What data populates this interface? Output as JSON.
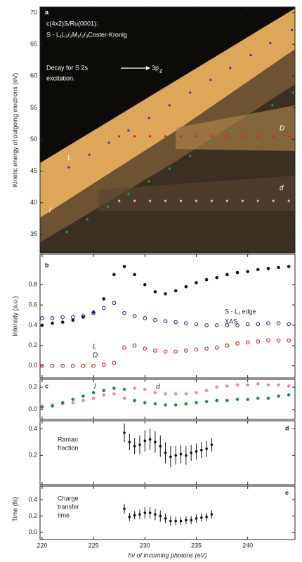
{
  "chart_data": [
    {
      "type": "scatter",
      "label": "a",
      "ylabel": "Kinetic energy of outgoing electrons (eV)",
      "ylim": [
        32.1,
        70.9
      ],
      "yticks": [
        35,
        40,
        45,
        50,
        55,
        60,
        65,
        70
      ],
      "annotations": [
        "c(4x2)S/Ru(0001):",
        "S - L₁L₂/₃M₁/₂/₃Coster-Kronig",
        "Decay for S 2s",
        "3p",
        "z",
        "excitation.",
        "L",
        "D",
        "l",
        "d"
      ],
      "series": [
        {
          "color": "#2b3fd0",
          "x": [
            222.6,
            224.6,
            226.5,
            228.4,
            230.4,
            232.4,
            234.4,
            236.4,
            238.3,
            240.3,
            242.2,
            244.3
          ],
          "values": [
            45.6,
            47.6,
            49.5,
            51.4,
            53.4,
            55.4,
            57.4,
            59.4,
            61.3,
            63.3,
            65.2,
            67.3
          ]
        },
        {
          "color": "#e02020",
          "x": [
            227.5,
            229,
            230.5,
            232,
            233.5,
            235,
            236.5,
            238,
            239.5,
            241,
            242.5,
            244
          ],
          "values": [
            50.5,
            50.5,
            50.5,
            50.5,
            50.5,
            50.5,
            50.5,
            50.5,
            50.5,
            50.5,
            50.5,
            50.5
          ]
        },
        {
          "color": "#20a040",
          "x": [
            222.4,
            224.4,
            226.4,
            228.4,
            230.4,
            232.4,
            234.4,
            236.4,
            238.4,
            240.4,
            242.4,
            244.4
          ],
          "values": [
            35.4,
            37.4,
            39.4,
            41.4,
            43.4,
            45.4,
            47.4,
            49.4,
            51.4,
            53.4,
            55.4,
            57.4
          ]
        },
        {
          "color": "#f0a0c8",
          "x": [
            227.5,
            229,
            230.5,
            232,
            233.5,
            235,
            236.5,
            238,
            239.5,
            241,
            242.5,
            244
          ],
          "values": [
            40.3,
            40.3,
            40.3,
            40.3,
            40.3,
            40.3,
            40.3,
            40.3,
            40.3,
            40.3,
            40.3,
            40.3
          ]
        }
      ]
    },
    {
      "type": "scatter",
      "label": "b",
      "ylabel": "Intensity (a.u.)",
      "ylim": [
        -0.12,
        1.1
      ],
      "yticks": [
        {
          "value": 0,
          "label": "0.0"
        },
        0.2,
        0.4,
        0.6,
        0.8
      ],
      "annotations": [
        "S - L₁ edge",
        "XAS",
        "L",
        "D"
      ],
      "series": [
        {
          "color": "#111111",
          "filled": true,
          "x": [
            220,
            221,
            222,
            223,
            224,
            225,
            226,
            227,
            228,
            229,
            230,
            231,
            232,
            233,
            234,
            235,
            236,
            237,
            238,
            239,
            240,
            241,
            242,
            243,
            244
          ],
          "values": [
            0.4,
            0.42,
            0.43,
            0.45,
            0.48,
            0.53,
            0.66,
            0.9,
            0.98,
            0.9,
            0.8,
            0.73,
            0.71,
            0.74,
            0.78,
            0.82,
            0.85,
            0.87,
            0.9,
            0.92,
            0.93,
            0.95,
            0.96,
            0.97,
            0.98
          ]
        },
        {
          "color": "#2a2a9a",
          "filled": false,
          "x": [
            220,
            221,
            222,
            223,
            224,
            225,
            226,
            227,
            228,
            229,
            230,
            231,
            232,
            233,
            234,
            235,
            236,
            237,
            238,
            239,
            240,
            241,
            242,
            243,
            244
          ],
          "values": [
            0.47,
            0.47,
            0.48,
            0.48,
            0.49,
            0.52,
            0.57,
            0.62,
            0.52,
            0.49,
            0.47,
            0.45,
            0.44,
            0.43,
            0.42,
            0.41,
            0.4,
            0.4,
            0.4,
            0.4,
            0.41,
            0.41,
            0.42,
            0.42,
            0.41
          ]
        },
        {
          "color": "#d02020",
          "filled": false,
          "x": [
            220,
            221,
            222,
            223,
            224,
            225,
            226,
            227,
            228,
            229,
            230,
            231,
            232,
            233,
            234,
            235,
            236,
            237,
            238,
            239,
            240,
            241,
            242,
            243,
            244
          ],
          "values": [
            0.0,
            0.0,
            0.0,
            0.0,
            0.0,
            0.0,
            0.01,
            0.03,
            0.18,
            0.2,
            0.17,
            0.15,
            0.14,
            0.14,
            0.15,
            0.16,
            0.17,
            0.18,
            0.2,
            0.22,
            0.23,
            0.24,
            0.25,
            0.25,
            0.25
          ]
        }
      ]
    },
    {
      "type": "scatter",
      "label": "c",
      "ylim": [
        -0.09,
        0.27
      ],
      "yticks": [
        {
          "value": 0,
          "label": "0.0"
        },
        0.2
      ],
      "annotations": [
        "l",
        "d"
      ],
      "series": [
        {
          "color": "#f08a9a",
          "filled": true,
          "x": [
            220,
            221,
            222,
            223,
            224,
            225,
            226,
            227,
            228,
            229,
            230,
            231,
            232,
            233,
            234,
            235,
            236,
            237,
            238,
            239,
            240,
            241,
            242,
            243,
            244
          ],
          "values": [
            0.03,
            0.04,
            0.05,
            0.06,
            0.08,
            0.1,
            0.13,
            0.14,
            0.1,
            0.19,
            0.18,
            0.15,
            0.14,
            0.14,
            0.14,
            0.15,
            0.17,
            0.2,
            0.21,
            0.22,
            0.22,
            0.23,
            0.22,
            0.22,
            0.21
          ]
        },
        {
          "color": "#2a8a40",
          "filled": true,
          "x": [
            220,
            221,
            222,
            223,
            224,
            225,
            226,
            227,
            228,
            229,
            230,
            231,
            232,
            233,
            234,
            235,
            236,
            237,
            238,
            239,
            240,
            241,
            242,
            243,
            244
          ],
          "values": [
            0.02,
            0.03,
            0.06,
            0.09,
            0.12,
            0.15,
            0.17,
            0.19,
            0.18,
            0.08,
            0.06,
            0.05,
            0.04,
            0.04,
            0.05,
            0.06,
            0.07,
            0.08,
            0.08,
            0.09,
            0.09,
            0.1,
            0.1,
            0.12,
            0.13
          ]
        }
      ]
    },
    {
      "type": "errorbar",
      "label": "d",
      "ylim": [
        -0.02,
        0.46
      ],
      "yticks": [
        0.2,
        0.4
      ],
      "annotations": [
        "Raman",
        "fraction"
      ],
      "series": [
        {
          "color": "#111111",
          "x": [
            228,
            228.5,
            229,
            229.5,
            230,
            230.5,
            231,
            231.5,
            232,
            232.5,
            233,
            233.5,
            234,
            234.5,
            235,
            235.5,
            236,
            236.5
          ],
          "values": [
            0.37,
            0.3,
            0.27,
            0.28,
            0.31,
            0.32,
            0.3,
            0.27,
            0.22,
            0.19,
            0.2,
            0.21,
            0.2,
            0.22,
            0.23,
            0.24,
            0.25,
            0.28
          ],
          "errors": [
            0.07,
            0.06,
            0.06,
            0.07,
            0.08,
            0.08,
            0.08,
            0.08,
            0.08,
            0.08,
            0.07,
            0.07,
            0.07,
            0.06,
            0.06,
            0.06,
            0.06,
            0.05
          ]
        }
      ]
    },
    {
      "type": "errorbar",
      "label": "e",
      "ylabel": "Time (fs)",
      "xlabel": "hν of incoming photons (eV)",
      "ylim": [
        -0.09,
        0.57
      ],
      "yticks": [
        {
          "value": 0,
          "label": "0.0"
        },
        0.2,
        0.4
      ],
      "xlim": [
        219.8,
        244.6
      ],
      "xticks": [
        220,
        225,
        230,
        235,
        240
      ],
      "annotations": [
        "Charge",
        "transfer",
        "time"
      ],
      "series": [
        {
          "color": "#111111",
          "x": [
            228,
            228.5,
            229,
            229.5,
            230,
            230.5,
            231,
            231.5,
            232,
            232.5,
            233,
            233.5,
            234,
            234.5,
            235,
            235.5,
            236,
            236.5
          ],
          "values": [
            0.29,
            0.19,
            0.21,
            0.22,
            0.24,
            0.24,
            0.22,
            0.2,
            0.17,
            0.14,
            0.14,
            0.14,
            0.15,
            0.15,
            0.17,
            0.18,
            0.19,
            0.22
          ],
          "errors": [
            0.06,
            0.05,
            0.05,
            0.06,
            0.07,
            0.07,
            0.07,
            0.07,
            0.06,
            0.06,
            0.05,
            0.05,
            0.05,
            0.05,
            0.05,
            0.05,
            0.05,
            0.05
          ]
        }
      ]
    }
  ]
}
